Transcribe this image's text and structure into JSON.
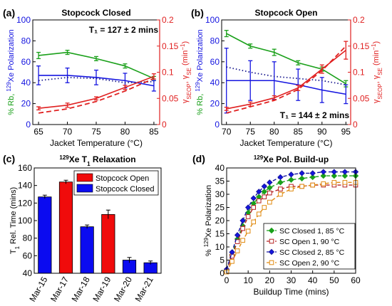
{
  "figure": {
    "background": "#ffffff"
  },
  "chart_data": [
    {
      "id": "a",
      "type": "line",
      "panel_letter": "(a)",
      "title": "Stopcock Closed",
      "xlabel": "Jacket Temperature (°C)",
      "ylabel_left_parts": [
        "% Rb, ",
        "129",
        "Xe Polarization"
      ],
      "ylabel_right_parts": [
        "γ",
        "SEOP",
        ", γ",
        "SE",
        " (min",
        "−1",
        ")"
      ],
      "annotation": "T₁ = 127 ± 2 mins",
      "x_ticks": [
        65,
        70,
        75,
        80,
        85
      ],
      "xlim": [
        64,
        86
      ],
      "ylim_left": [
        0,
        100
      ],
      "yticks_left": [
        0,
        20,
        40,
        60,
        80,
        100
      ],
      "ylim_right": [
        0,
        0.2
      ],
      "yticks_right": [
        "0",
        "0.05",
        "0.1",
        "0.15",
        "0.2"
      ],
      "grid": false,
      "series": [
        {
          "axis": "left",
          "style": "solid",
          "color": "#1aa01a",
          "x": [
            65,
            70,
            75,
            80,
            85
          ],
          "y": [
            66,
            69,
            63,
            56,
            44
          ],
          "err": [
            3,
            2,
            2,
            2,
            2
          ]
        },
        {
          "axis": "left",
          "style": "solid",
          "color": "#1515e0",
          "x": [
            65,
            70,
            75,
            80,
            85
          ],
          "y": [
            47,
            47,
            45,
            42,
            37
          ],
          "err": [
            9,
            7,
            7,
            7,
            5
          ]
        },
        {
          "axis": "left",
          "style": "dotted",
          "color": "#1b1b8f",
          "x": [
            65,
            70,
            75,
            80,
            85
          ],
          "y": [
            42,
            45,
            44,
            40,
            41
          ],
          "err": []
        },
        {
          "axis": "right",
          "style": "solid",
          "color": "#e02020",
          "x": [
            65,
            70,
            75,
            80,
            85
          ],
          "y": [
            0.031,
            0.037,
            0.05,
            0.071,
            0.092
          ],
          "err": [
            0.003,
            0.004,
            0.003,
            0.004,
            0.005
          ]
        },
        {
          "axis": "right",
          "style": "dashed",
          "color": "#e02020",
          "x": [
            65,
            70,
            75,
            80,
            85
          ],
          "y": [
            0.022,
            0.03,
            0.044,
            0.064,
            0.088
          ],
          "err": []
        }
      ]
    },
    {
      "id": "b",
      "type": "line",
      "panel_letter": "(b)",
      "title": "Stopcock Open",
      "xlabel": "Jacket Temperature (°C)",
      "ylabel_left_parts": [
        "% Rb, ",
        "129",
        "Xe Polarization"
      ],
      "ylabel_right_parts": [
        "γ",
        "SEOP",
        ", γ",
        "SE",
        " (min",
        "−1",
        ")"
      ],
      "annotation": "T₁ = 144 ± 2 mins",
      "x_ticks": [
        70,
        75,
        80,
        85,
        90,
        95
      ],
      "xlim": [
        69,
        96
      ],
      "ylim_left": [
        0,
        100
      ],
      "yticks_left": [
        0,
        20,
        40,
        60,
        80,
        100
      ],
      "ylim_right": [
        0,
        0.2
      ],
      "yticks_right": [
        "0",
        "0.05",
        "0.1",
        "0.15",
        "0.2"
      ],
      "grid": false,
      "series": [
        {
          "axis": "left",
          "style": "solid",
          "color": "#1aa01a",
          "x": [
            70,
            75,
            80,
            85,
            90,
            95
          ],
          "y": [
            87,
            75,
            69,
            59,
            53,
            39
          ],
          "err": [
            3,
            2,
            3,
            2,
            2,
            3
          ]
        },
        {
          "axis": "left",
          "style": "solid",
          "color": "#1515e0",
          "x": [
            70,
            75,
            80,
            85,
            90,
            95
          ],
          "y": [
            42,
            42,
            42,
            38,
            33,
            29
          ],
          "err": [
            31,
            19,
            18,
            15,
            12,
            9
          ]
        },
        {
          "axis": "left",
          "style": "dotted",
          "color": "#1b1b8f",
          "x": [
            70,
            75,
            80,
            85,
            90,
            95
          ],
          "y": [
            55,
            50,
            46,
            44,
            42,
            38
          ],
          "err": []
        },
        {
          "axis": "right",
          "style": "solid",
          "color": "#e02020",
          "x": [
            70,
            75,
            80,
            85,
            90,
            95
          ],
          "y": [
            0.03,
            0.039,
            0.051,
            0.07,
            0.106,
            0.142
          ],
          "err": [
            0.003,
            0.004,
            0.004,
            0.005,
            0.008,
            0.017
          ]
        },
        {
          "axis": "right",
          "style": "dashed",
          "color": "#e02020",
          "x": [
            70,
            75,
            80,
            85,
            90,
            95
          ],
          "y": [
            0.022,
            0.034,
            0.046,
            0.067,
            0.103,
            0.15
          ],
          "err": []
        }
      ]
    },
    {
      "id": "c",
      "type": "bar",
      "panel_letter": "(c)",
      "title_parts": [
        "129",
        "Xe T",
        "1",
        " Relaxation"
      ],
      "ylabel_parts": [
        "T",
        "1",
        " Rel. Time (mins)"
      ],
      "xlabel": "",
      "categories": [
        "Mar-15",
        "Mar-17",
        "Mar-18",
        "Mar-19",
        "Mar-20",
        "Mar-21"
      ],
      "values": [
        127,
        144,
        93,
        107,
        55,
        52
      ],
      "errors": [
        2,
        2,
        2,
        5,
        3,
        2
      ],
      "bar_colors": [
        "#0b0bf0",
        "#f00b0b",
        "#0b0bf0",
        "#f00b0b",
        "#0b0bf0",
        "#0b0bf0"
      ],
      "ylim": [
        40,
        160
      ],
      "yticks": [
        40,
        60,
        80,
        100,
        120,
        140,
        160
      ],
      "legend": [
        {
          "label": "Stopcock Open",
          "color": "#f00b0b"
        },
        {
          "label": "Stopcock Closed",
          "color": "#0b0bf0"
        }
      ],
      "legend_position": "top-right"
    },
    {
      "id": "d",
      "type": "scatter",
      "panel_letter": "(d)",
      "title_parts": [
        "129",
        "Xe Pol. Build-up"
      ],
      "xlabel": "Buildup Time (mins)",
      "ylabel_parts": [
        "% ",
        "129",
        "Xe Polarization"
      ],
      "xlim": [
        0,
        60
      ],
      "xticks": [
        0,
        10,
        20,
        30,
        40,
        50,
        60
      ],
      "ylim": [
        0,
        40
      ],
      "yticks": [
        0,
        5,
        10,
        15,
        20,
        25,
        30,
        35,
        40
      ],
      "legend_position": "bottom-right",
      "series": [
        {
          "name": "SC Closed 1, 85 °C",
          "color": "#1aa01a",
          "marker": "diamond",
          "fill": "#1aa01a",
          "x": [
            0,
            2.5,
            5,
            7.5,
            10,
            12.5,
            15,
            17.5,
            20,
            25,
            30,
            35,
            40,
            45,
            50,
            55,
            60
          ],
          "y": [
            1,
            7,
            13,
            18,
            23,
            26.5,
            29,
            31,
            32.5,
            34.5,
            35.5,
            36,
            36.5,
            37,
            37,
            37,
            37
          ]
        },
        {
          "name": "SC Open 1, 90 °C",
          "color": "#b52020",
          "marker": "square",
          "fill": "#ffffff",
          "x": [
            0,
            2.5,
            5,
            7.5,
            10,
            12.5,
            15,
            17.5,
            20,
            25,
            30,
            35,
            40,
            45,
            50,
            55,
            60
          ],
          "y": [
            1,
            6.5,
            12,
            17,
            21.5,
            25,
            27.5,
            29,
            30.5,
            32,
            33,
            33,
            33.5,
            33.5,
            33.5,
            33.5,
            33.5
          ]
        },
        {
          "name": "SC Closed 2, 85 °C",
          "color": "#1515a0",
          "marker": "diamond",
          "fill": "#1515e0",
          "x": [
            0,
            2.5,
            5,
            7.5,
            10,
            12.5,
            15,
            17.5,
            20,
            25,
            30,
            35,
            40,
            45,
            50,
            55,
            60
          ],
          "y": [
            1.5,
            8,
            14.5,
            20,
            25,
            28.5,
            31,
            33,
            34.5,
            36.5,
            37.5,
            38,
            38,
            38.5,
            38.5,
            38.5,
            38.5
          ]
        },
        {
          "name": "SC Open 2, 90 °C",
          "color": "#e08a10",
          "marker": "square",
          "fill": "#ffffff",
          "x": [
            0,
            2.5,
            5,
            7.5,
            10,
            12.5,
            15,
            17.5,
            20,
            25,
            30,
            35,
            40,
            45,
            50,
            55,
            60
          ],
          "y": [
            0.5,
            4.5,
            8.5,
            12.5,
            16,
            19.5,
            22.5,
            25,
            27,
            30,
            32,
            33,
            33.5,
            34,
            34.5,
            34.5,
            34.5
          ]
        }
      ]
    }
  ]
}
